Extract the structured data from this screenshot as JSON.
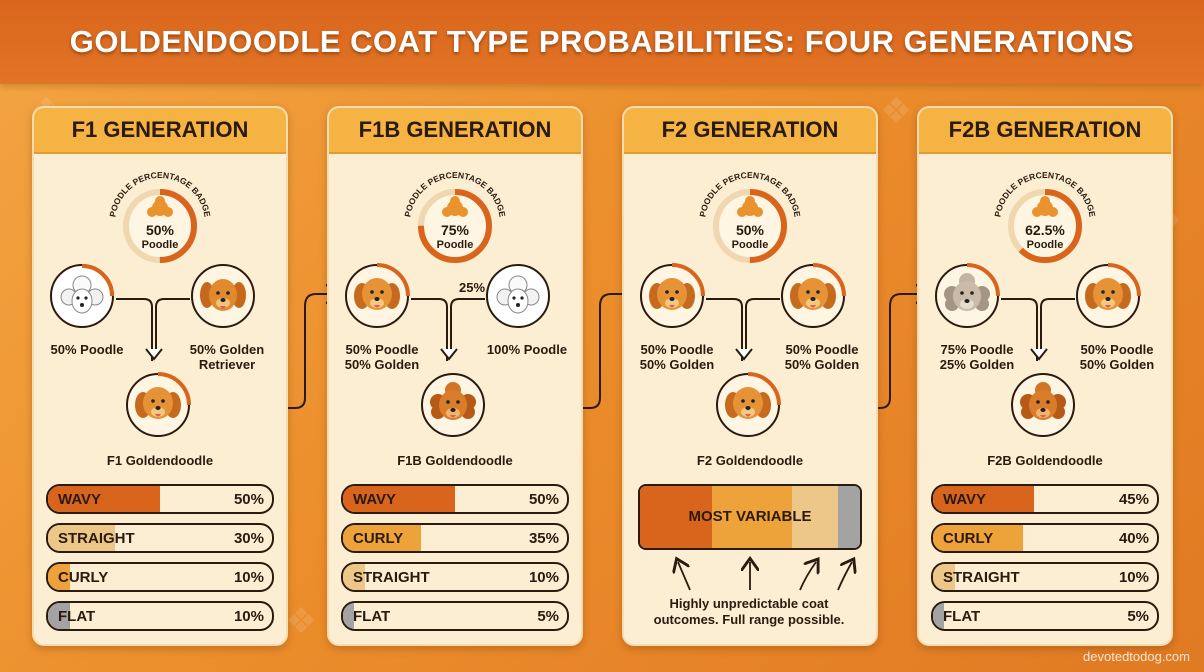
{
  "title": "GOLDENDOODLE COAT TYPE PROBABILITIES: FOUR GENERATIONS",
  "credit": "devotedtodog.com",
  "badge_caption": "POODLE PERCENTAGE BADGE",
  "colors": {
    "dark_orange": "#d9651c",
    "gold": "#f4b343",
    "sand": "#ecc787",
    "gray": "#a3a3a3",
    "cream": "#fbeed3"
  },
  "generations": [
    {
      "name": "F1 GENERATION",
      "badge": {
        "percent": "50%",
        "label": "Poodle",
        "fraction": 0.5
      },
      "parent_left": {
        "label1": "50% Poodle",
        "label2": "",
        "icon": "white-poodle-icon"
      },
      "parent_right": {
        "label1": "50% Golden",
        "label2": "Retriever",
        "icon": "golden-retriever-icon"
      },
      "offspring": {
        "label": "F1 Goldendoodle",
        "icon": "goldendoodle-icon"
      },
      "coats": [
        {
          "name": "WAVY",
          "value": "50%",
          "fraction": 0.5,
          "color": "#d9651c"
        },
        {
          "name": "STRAIGHT",
          "value": "30%",
          "fraction": 0.3,
          "color": "#ecc787"
        },
        {
          "name": "CURLY",
          "value": "10%",
          "fraction": 0.1,
          "color": "#eea23a"
        },
        {
          "name": "FLAT",
          "value": "10%",
          "fraction": 0.1,
          "color": "#a3a3a3"
        }
      ]
    },
    {
      "name": "F1B GENERATION",
      "badge": {
        "percent": "75%",
        "label": "Poodle",
        "fraction": 0.75
      },
      "parent_left": {
        "label1": "50% Poodle",
        "label2": "50% Golden",
        "icon": "goldendoodle-icon"
      },
      "parent_right": {
        "label1": "100% Poodle",
        "label2": "",
        "icon": "white-poodle-icon"
      },
      "parent_right_tag": "25%",
      "offspring": {
        "label": "F1B Goldendoodle",
        "icon": "curly-goldendoodle-icon"
      },
      "coats": [
        {
          "name": "WAVY",
          "value": "50%",
          "fraction": 0.5,
          "color": "#d9651c"
        },
        {
          "name": "CURLY",
          "value": "35%",
          "fraction": 0.35,
          "color": "#eea23a"
        },
        {
          "name": "STRAIGHT",
          "value": "10%",
          "fraction": 0.1,
          "color": "#ecc787"
        },
        {
          "name": "FLAT",
          "value": "5%",
          "fraction": 0.05,
          "color": "#a3a3a3"
        }
      ]
    },
    {
      "name": "F2 GENERATION",
      "badge": {
        "percent": "50%",
        "label": "Poodle",
        "fraction": 0.5
      },
      "parent_left": {
        "label1": "50% Poodle",
        "label2": "50% Golden",
        "icon": "goldendoodle-icon"
      },
      "parent_right": {
        "label1": "50% Poodle",
        "label2": "50% Golden",
        "icon": "goldendoodle-icon"
      },
      "offspring": {
        "label": "F2 Goldendoodle",
        "icon": "goldendoodle-icon"
      },
      "variable_label": "MOST VARIABLE",
      "note": "Highly unpredictable coat outcomes. Full range possible."
    },
    {
      "name": "F2B GENERATION",
      "badge": {
        "percent": "62.5%",
        "label": "Poodle",
        "fraction": 0.625
      },
      "parent_left": {
        "label1": "75% Poodle",
        "label2": "25% Golden",
        "icon": "gray-doodle-icon"
      },
      "parent_right": {
        "label1": "50% Poodle",
        "label2": "50% Golden",
        "icon": "goldendoodle-icon"
      },
      "offspring": {
        "label": "F2B Goldendoodle",
        "icon": "curly-goldendoodle-icon"
      },
      "coats": [
        {
          "name": "WAVY",
          "value": "45%",
          "fraction": 0.45,
          "color": "#d9651c"
        },
        {
          "name": "CURLY",
          "value": "40%",
          "fraction": 0.4,
          "color": "#eea23a"
        },
        {
          "name": "STRAIGHT",
          "value": "10%",
          "fraction": 0.1,
          "color": "#ecc787"
        },
        {
          "name": "FLAT",
          "value": "5%",
          "fraction": 0.05,
          "color": "#a3a3a3"
        }
      ]
    }
  ]
}
